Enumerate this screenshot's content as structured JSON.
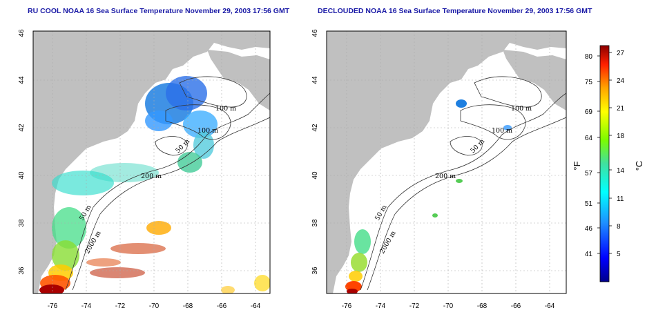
{
  "left_map": {
    "title": "RU COOL NOAA 16 Sea Surface Temperature November 29, 2003 17:56 GMT",
    "contour_labels": [
      "100 m",
      "100 m",
      "50 m",
      "200 m",
      "50 m",
      "2000 m"
    ]
  },
  "right_map": {
    "title": "DECLOUDED NOAA 16 Sea Surface Temperature November 29, 2003 17:56 GMT",
    "contour_labels": [
      "100 m",
      "100 m",
      "50 m",
      "200 m",
      "50 m",
      "2000 m"
    ]
  },
  "axes": {
    "x_ticks": [
      "-76",
      "-74",
      "-72",
      "-70",
      "-68",
      "-66",
      "-64"
    ],
    "y_ticks": [
      "36",
      "38",
      "40",
      "42",
      "44",
      "46"
    ]
  },
  "colorbar": {
    "fahrenheit_label": "°F",
    "celsius_label": "°C",
    "fahrenheit_ticks": [
      "80",
      "75",
      "69",
      "64",
      "57",
      "51",
      "46",
      "41"
    ],
    "celsius_ticks": [
      "27",
      "24",
      "21",
      "18",
      "14",
      "11",
      "8",
      "5"
    ],
    "colors": [
      "#00008b",
      "#0000ff",
      "#1e90ff",
      "#00ffff",
      "#40e0a0",
      "#7cfc00",
      "#ffff00",
      "#ffa500",
      "#ff4500",
      "#8b0000"
    ]
  },
  "colors": {
    "land": "#c0c0c0",
    "ocean": "#ffffff",
    "contour": "#333333",
    "grid": "#aaaaaa",
    "title": "#1a1aa6"
  }
}
